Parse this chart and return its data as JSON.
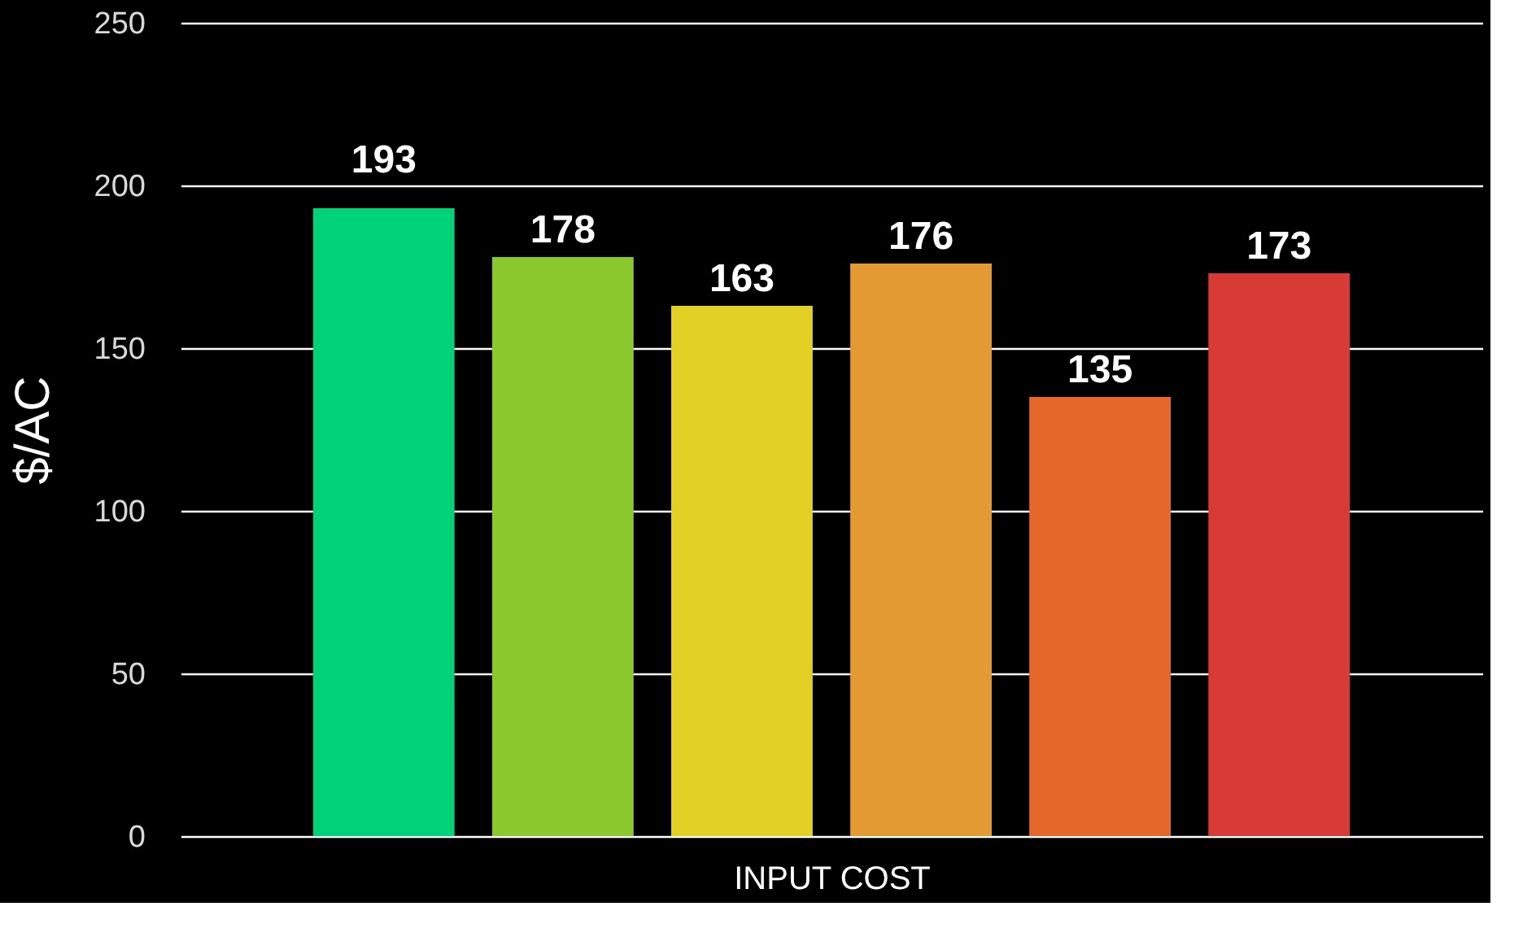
{
  "chart_data": {
    "type": "bar",
    "xlabel": "INPUT COST",
    "ylabel": "$/AC",
    "categories": [
      null,
      null,
      null,
      null,
      null,
      null
    ],
    "values": [
      193,
      178,
      163,
      176,
      135,
      173
    ],
    "colors": [
      "#00d27a",
      "#8ac82e",
      "#e2d024",
      "#e39a33",
      "#e5682a",
      "#d83a35"
    ],
    "ylim": [
      0,
      250
    ],
    "yticks": [
      0,
      50,
      100,
      150,
      200,
      250
    ],
    "grid": "y",
    "data_labels": true
  }
}
